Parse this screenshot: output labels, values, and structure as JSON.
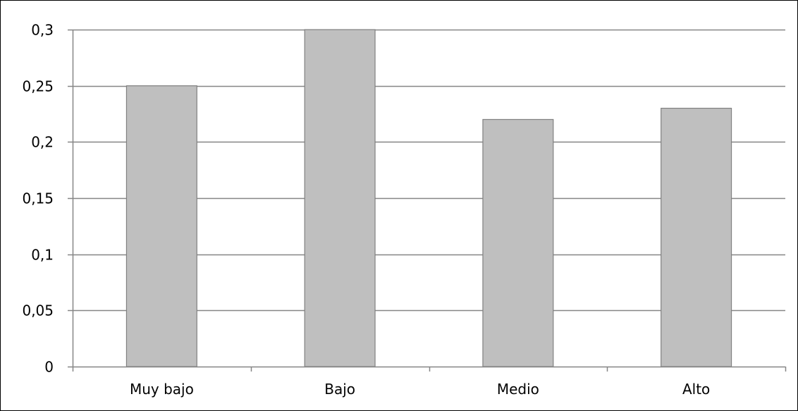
{
  "chart_data": {
    "type": "bar",
    "title": "",
    "xlabel": "",
    "ylabel": "",
    "categories": [
      "Muy bajo",
      "Bajo",
      "Medio",
      "Alto"
    ],
    "values": [
      0.25,
      0.3,
      0.22,
      0.23
    ],
    "ylim": [
      0,
      0.3
    ],
    "yticks": [
      0,
      0.05,
      0.1,
      0.15,
      0.2,
      0.25,
      0.3
    ],
    "ytick_labels": [
      "0",
      "0,05",
      "0,1",
      "0,15",
      "0,2",
      "0,25",
      "0,3"
    ],
    "grid": true,
    "legend": "none",
    "colors": {
      "bar_fill": "#bfbfbf",
      "bar_stroke": "#808080",
      "grid": "#868686",
      "axis": "#868686",
      "text": "#000000"
    }
  }
}
